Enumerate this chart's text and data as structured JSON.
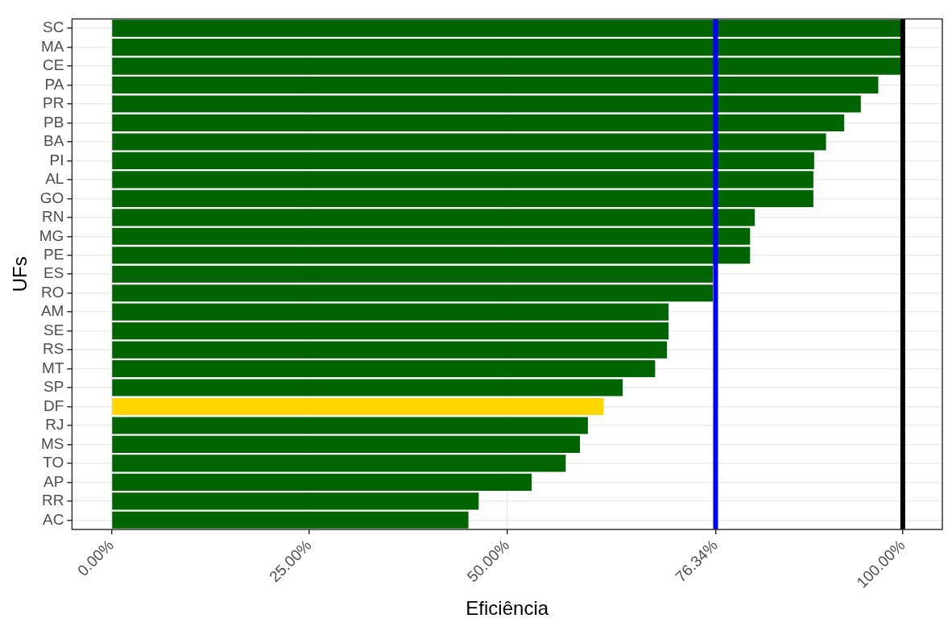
{
  "chart_data": {
    "type": "bar",
    "orientation": "horizontal",
    "xlabel": "Eficiência",
    "ylabel": "UFs",
    "categories": [
      "SC",
      "MA",
      "CE",
      "PA",
      "PR",
      "PB",
      "BA",
      "PI",
      "AL",
      "GO",
      "RN",
      "MG",
      "PE",
      "ES",
      "RO",
      "AM",
      "SE",
      "RS",
      "MT",
      "SP",
      "DF",
      "RJ",
      "MS",
      "TO",
      "AP",
      "RR",
      "AC"
    ],
    "values": [
      100,
      100,
      100,
      96.9,
      94.7,
      92.6,
      90.3,
      88.8,
      88.7,
      88.7,
      81.3,
      80.7,
      80.7,
      76.0,
      76.0,
      70.4,
      70.4,
      70.2,
      68.7,
      64.6,
      62.2,
      60.2,
      59.2,
      57.4,
      53.1,
      46.4,
      45.1
    ],
    "colors": [
      "#006400",
      "#006400",
      "#006400",
      "#006400",
      "#006400",
      "#006400",
      "#006400",
      "#006400",
      "#006400",
      "#006400",
      "#006400",
      "#006400",
      "#006400",
      "#006400",
      "#006400",
      "#006400",
      "#006400",
      "#006400",
      "#006400",
      "#006400",
      "#ffd700",
      "#006400",
      "#006400",
      "#006400",
      "#006400",
      "#006400",
      "#006400"
    ],
    "xlim": [
      -5,
      105
    ],
    "xticks": [
      {
        "value": 0,
        "label": "0.00%"
      },
      {
        "value": 25,
        "label": "25.00%"
      },
      {
        "value": 50,
        "label": "50.00%"
      },
      {
        "value": 76.34,
        "label": "76.34%"
      },
      {
        "value": 100,
        "label": "100.00%"
      }
    ],
    "ref_lines": [
      {
        "axis": "x",
        "value": 76.34,
        "color": "#0000ff"
      },
      {
        "axis": "x",
        "value": 100,
        "color": "#000000"
      }
    ],
    "grid": true,
    "legend": false
  }
}
